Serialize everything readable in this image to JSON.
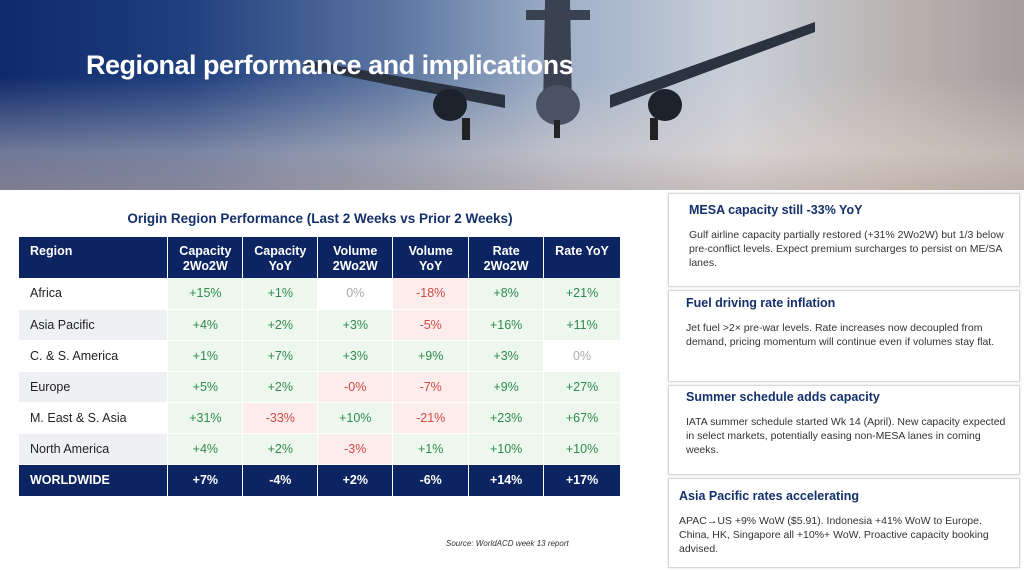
{
  "title": "Regional performance and implications",
  "table": {
    "title": "Origin Region Performance (Last 2 Weeks vs Prior 2 Weeks)",
    "headers": [
      [
        "Region",
        ""
      ],
      [
        "Capacity",
        "2Wo2W"
      ],
      [
        "Capacity",
        "YoY"
      ],
      [
        "Volume",
        "2Wo2W"
      ],
      [
        "Volume",
        "YoY"
      ],
      [
        "Rate",
        "2Wo2W"
      ],
      [
        "Rate YoY",
        ""
      ]
    ],
    "rows": [
      {
        "region": "Africa",
        "values": [
          "+15%",
          "+1%",
          "0%",
          "-18%",
          "+8%",
          "+21%"
        ]
      },
      {
        "region": "Asia Pacific",
        "values": [
          "+4%",
          "+2%",
          "+3%",
          "-5%",
          "+16%",
          "+11%"
        ]
      },
      {
        "region": "C. & S. America",
        "values": [
          "+1%",
          "+7%",
          "+3%",
          "+9%",
          "+3%",
          "0%"
        ]
      },
      {
        "region": "Europe",
        "values": [
          "+5%",
          "+2%",
          "-0%",
          "-7%",
          "+9%",
          "+27%"
        ]
      },
      {
        "region": "M. East & S. Asia",
        "values": [
          "+31%",
          "-33%",
          "+10%",
          "-21%",
          "+23%",
          "+67%"
        ]
      },
      {
        "region": "North America",
        "values": [
          "+4%",
          "+2%",
          "-3%",
          "+1%",
          "+10%",
          "+10%"
        ]
      }
    ],
    "total": {
      "region": "WORLDWIDE",
      "values": [
        "+7%",
        "-4%",
        "+2%",
        "-6%",
        "+14%",
        "+17%"
      ]
    }
  },
  "source": "Source: WorldACD week 13 report",
  "cards": [
    {
      "title": "MESA capacity still -33% YoY",
      "body": "Gulf airline capacity partially restored (+31% 2Wo2W) but 1/3 below pre-conflict levels. Expect premium surcharges to persist on ME/SA lanes."
    },
    {
      "title": "Fuel driving rate inflation",
      "body": "Jet fuel >2× pre-war levels. Rate increases now decoupled from demand, pricing momentum will continue even if volumes stay flat."
    },
    {
      "title": "Summer schedule adds capacity",
      "body": "IATA summer schedule started Wk 14 (April). New capacity expected in select markets, potentially easing non-MESA lanes in coming weeks."
    },
    {
      "title": "Asia Pacific rates accelerating",
      "body": "APAC→US +9% WoW ($5.91). Indonesia +41% WoW to Europe. China, HK, Singapore all +10%+ WoW. Proactive capacity booking advised."
    }
  ],
  "colors": {
    "navy": "#0c2461",
    "green": "#2e8a4e",
    "red": "#d04a45"
  }
}
